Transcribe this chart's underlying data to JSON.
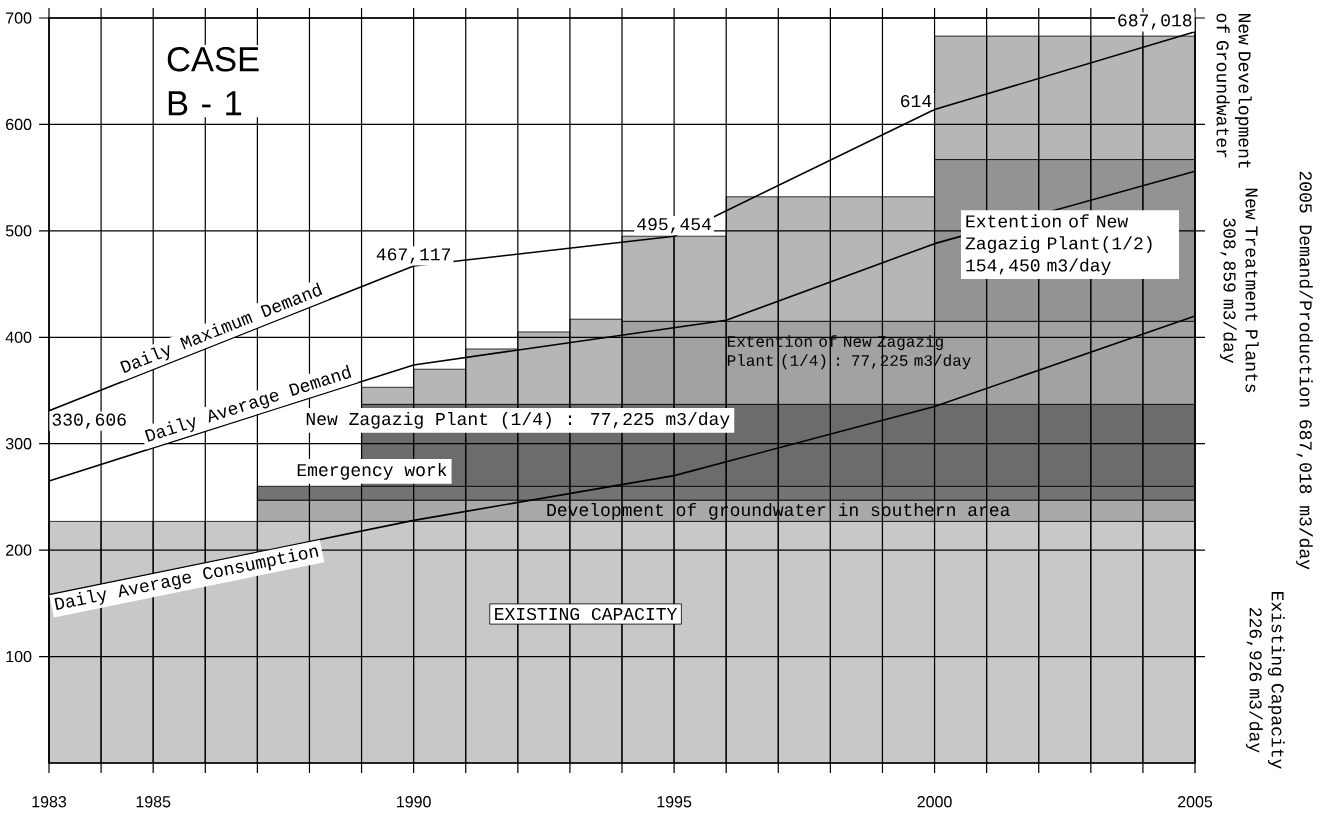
{
  "chart_data": {
    "type": "bar",
    "stacked": true,
    "x": [
      1983.5,
      1984.5,
      1985.5,
      1986.5,
      1987.5,
      1988.5,
      1989.5,
      1990.5,
      1991.5,
      1992.5,
      1993.5,
      1994.5,
      1995.5,
      1996.5,
      1997.5,
      1998.5,
      1999.5,
      2000.5,
      2001.5,
      2002.5,
      2003.5,
      2004.5
    ],
    "series": [
      {
        "name": "EXISTING CAPACITY",
        "color": "#c8c8c8",
        "values": [
          227,
          227,
          227,
          227,
          227,
          227,
          227,
          227,
          227,
          227,
          227,
          227,
          227,
          227,
          227,
          227,
          227,
          227,
          227,
          227,
          227,
          227
        ]
      },
      {
        "name": "Development of groundwater in southern area",
        "color": "#a9a9a9",
        "values": [
          null,
          null,
          null,
          null,
          20,
          20,
          20,
          20,
          20,
          20,
          20,
          20,
          20,
          20,
          20,
          20,
          20,
          20,
          20,
          20,
          20,
          20
        ]
      },
      {
        "name": "Emergency work",
        "color": "#747474",
        "values": [
          null,
          null,
          null,
          null,
          13,
          13,
          13,
          13,
          13,
          13,
          13,
          13,
          13,
          13,
          13,
          13,
          13,
          13,
          13,
          13,
          13,
          13
        ]
      },
      {
        "name": "New Zagazig Plant (1/4) : 77,225 m3/day",
        "color": "#6c6c6c",
        "values": [
          null,
          null,
          null,
          null,
          null,
          null,
          77,
          77,
          77,
          77,
          77,
          77,
          77,
          77,
          77,
          77,
          77,
          77,
          77,
          77,
          77,
          77
        ]
      },
      {
        "name": "Extention of New Zagazig Plant (1/4) : 77,225 m3/day",
        "color": "#a2a2a2",
        "values": [
          null,
          null,
          null,
          null,
          null,
          null,
          null,
          null,
          null,
          null,
          null,
          78,
          78,
          78,
          78,
          78,
          78,
          78,
          78,
          78,
          78,
          78
        ]
      },
      {
        "name": "Extention of New Zagazig Plant(1/2) 154,450 m3/day",
        "color": "#939393",
        "values": [
          null,
          null,
          null,
          null,
          null,
          null,
          null,
          null,
          null,
          null,
          null,
          null,
          null,
          null,
          null,
          null,
          null,
          152,
          152,
          152,
          152,
          152
        ]
      },
      {
        "name": "New Development of Groundwater",
        "color": "#b6b6b6",
        "values": [
          null,
          null,
          null,
          null,
          null,
          null,
          16,
          33,
          52,
          68,
          80,
          80,
          80,
          117,
          117,
          117,
          117,
          116,
          116,
          116,
          116,
          116
        ]
      },
      {
        "name": "Daily Maximum Demand",
        "type": "line",
        "color": "#000000",
        "x": [
          1983,
          1990,
          1995,
          2000,
          2005
        ],
        "values": [
          331,
          467,
          495,
          614,
          687
        ]
      },
      {
        "name": "Daily Average Demand",
        "type": "line",
        "color": "#000000",
        "x": [
          1983,
          1990,
          1996,
          2000,
          2005
        ],
        "values": [
          265,
          374,
          416,
          488,
          556
        ]
      },
      {
        "name": "Daily Average Consumption",
        "type": "line",
        "color": "#000000",
        "x": [
          1983,
          1990,
          1995,
          2000,
          2005
        ],
        "values": [
          158,
          228,
          270,
          335,
          420
        ]
      }
    ],
    "xlim": [
      1983,
      2005
    ],
    "xticks": [
      1983,
      {
        "value": 1984,
        "label": null
      },
      1985,
      {
        "value": 1986,
        "label": null
      },
      {
        "value": 1987,
        "label": null
      },
      {
        "value": 1988,
        "label": null
      },
      {
        "value": 1989,
        "label": null
      },
      1990,
      {
        "value": 1991,
        "label": null
      },
      {
        "value": 1992,
        "label": null
      },
      {
        "value": 1993,
        "label": null
      },
      {
        "value": 1994,
        "label": null
      },
      1995,
      {
        "value": 1996,
        "label": null
      },
      {
        "value": 1997,
        "label": null
      },
      {
        "value": 1998,
        "label": null
      },
      {
        "value": 1999,
        "label": null
      },
      2000,
      {
        "value": 2001,
        "label": null
      },
      {
        "value": 2002,
        "label": null
      },
      {
        "value": 2003,
        "label": null
      },
      {
        "value": 2004,
        "label": null
      },
      2005
    ],
    "ylim": [
      0,
      700
    ],
    "yticks": [
      100,
      200,
      300,
      400,
      500,
      600,
      700
    ],
    "grid": true,
    "annotations": [
      "CASE B - 1",
      "New Treatment Plants 308,859 m3/day",
      "Existing Capacity 226,926 m3/day",
      "2005 Demand/Production 687,018 m3/day",
      {
        "text": "330,606",
        "x": 1983,
        "y": 330.606
      },
      {
        "text": "467,117",
        "x": 1990,
        "y": 467.117
      },
      {
        "text": "495,454",
        "x": 1995,
        "y": 495.454
      },
      {
        "text": "614",
        "x": 2000,
        "y": 614
      },
      {
        "text": "687,018",
        "x": 2005,
        "y": 687.018
      }
    ]
  }
}
